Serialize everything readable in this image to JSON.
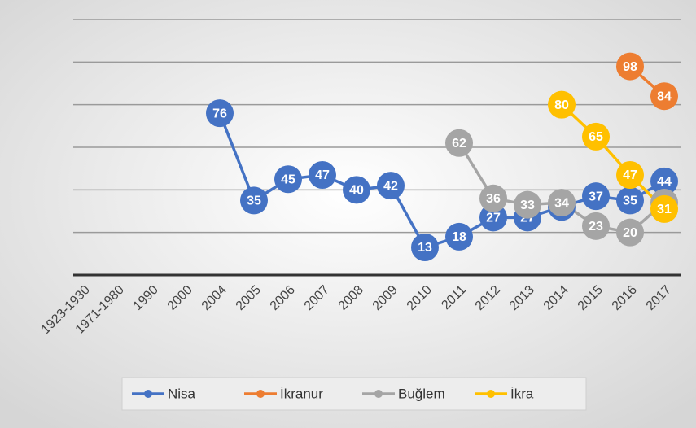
{
  "chart_data": {
    "type": "line",
    "categories": [
      "1923-1930",
      "1971-1980",
      "1990",
      "2000",
      "2004",
      "2005",
      "2006",
      "2007",
      "2008",
      "2009",
      "2010",
      "2011",
      "2012",
      "2013",
      "2014",
      "2015",
      "2016",
      "2017"
    ],
    "series": [
      {
        "name": "Nisa",
        "color": "#4472c4",
        "values": [
          null,
          null,
          null,
          null,
          76,
          35,
          45,
          47,
          40,
          42,
          13,
          18,
          27,
          27,
          32,
          37,
          35,
          44
        ]
      },
      {
        "name": "İkranur",
        "color": "#ed7d31",
        "values": [
          null,
          null,
          null,
          null,
          null,
          null,
          null,
          null,
          null,
          null,
          null,
          null,
          null,
          null,
          null,
          null,
          98,
          84
        ]
      },
      {
        "name": "Buğlem",
        "color": "#a5a5a5",
        "values": [
          null,
          null,
          null,
          null,
          null,
          null,
          null,
          null,
          null,
          null,
          null,
          62,
          36,
          33,
          34,
          23,
          20,
          34
        ]
      },
      {
        "name": "İkra",
        "color": "#ffc000",
        "values": [
          null,
          null,
          null,
          null,
          null,
          null,
          null,
          null,
          null,
          null,
          null,
          null,
          null,
          null,
          80,
          65,
          47,
          31
        ]
      }
    ],
    "ylim": [
      0,
      120
    ],
    "yticks": [
      0,
      20,
      40,
      60,
      80,
      100,
      120
    ],
    "grid": true,
    "legend": "bottom"
  }
}
